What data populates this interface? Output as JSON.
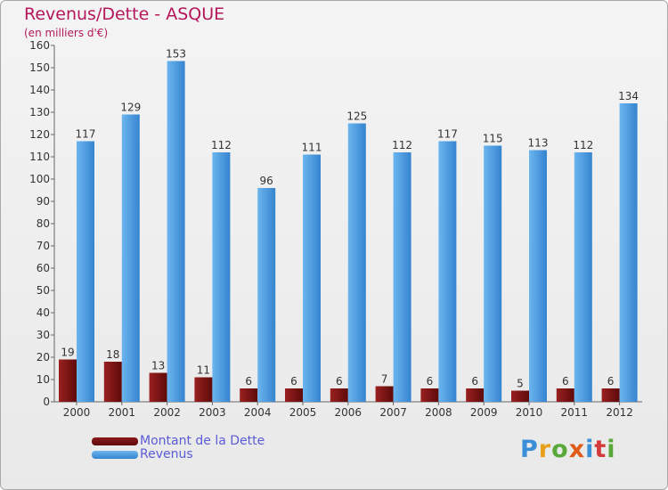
{
  "title": "Revenus/Dette - ASQUE",
  "subtitle": "(en milliers d'€)",
  "logo": "Proxiti",
  "colors": {
    "title": "#b5175b",
    "revenus": "#4a9de0",
    "dette": "#7a0f0f",
    "legend_text": "#5b5bd6"
  },
  "legend": [
    {
      "label": "Montant de la Dette",
      "color": "#7a0f0f"
    },
    {
      "label": "Revenus",
      "color": "#4a9de0"
    }
  ],
  "chart_data": {
    "type": "bar",
    "title": "Revenus/Dette - ASQUE",
    "subtitle": "(en milliers d'€)",
    "categories": [
      "2000",
      "2001",
      "2002",
      "2003",
      "2004",
      "2005",
      "2006",
      "2007",
      "2008",
      "2009",
      "2010",
      "2011",
      "2012"
    ],
    "series": [
      {
        "name": "Montant de la Dette",
        "values": [
          19,
          18,
          13,
          11,
          6,
          6,
          6,
          7,
          6,
          6,
          5,
          6,
          6
        ]
      },
      {
        "name": "Revenus",
        "values": [
          117,
          129,
          153,
          112,
          96,
          111,
          125,
          112,
          117,
          115,
          113,
          112,
          134
        ]
      }
    ],
    "ylim": [
      0,
      160
    ],
    "yticks": [
      0,
      10,
      20,
      30,
      40,
      50,
      60,
      70,
      80,
      90,
      100,
      110,
      120,
      130,
      140,
      150,
      160
    ],
    "grid": false,
    "legend_position": "bottom-left",
    "data_labels": true
  }
}
